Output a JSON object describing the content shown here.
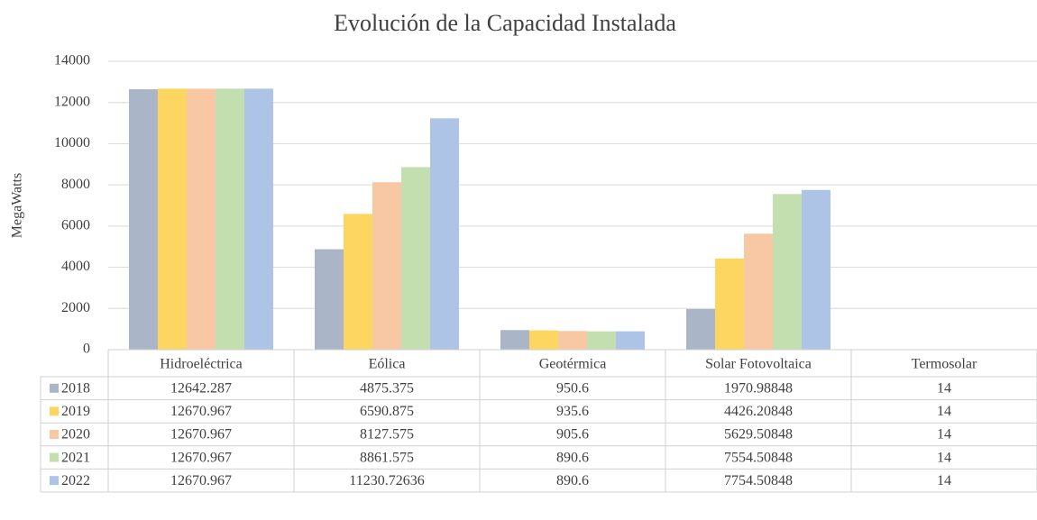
{
  "chart_data": {
    "type": "bar",
    "title": "Evolución de la Capacidad Instalada",
    "ylabel": "MegaWatts",
    "categories": [
      "Hidroeléctrica",
      "Eólica",
      "Geotérmica",
      "Solar Fotovoltaica",
      "Termosolar"
    ],
    "series": [
      {
        "name": "2018",
        "color": "#aab5c8",
        "values": [
          12642.287,
          4875.375,
          950.6,
          1970.98848,
          14
        ]
      },
      {
        "name": "2019",
        "color": "#fdd662",
        "values": [
          12670.967,
          6590.875,
          935.6,
          4426.20848,
          14
        ]
      },
      {
        "name": "2020",
        "color": "#f8c8a4",
        "values": [
          12670.967,
          8127.575,
          905.6,
          5629.50848,
          14
        ]
      },
      {
        "name": "2021",
        "color": "#c3dfb0",
        "values": [
          12670.967,
          8861.575,
          890.6,
          7554.50848,
          14
        ]
      },
      {
        "name": "2022",
        "color": "#adc4e6",
        "values": [
          12670.967,
          11230.72636,
          890.6,
          7754.50848,
          14
        ]
      }
    ],
    "ylim": [
      0,
      14000
    ],
    "yticks": [
      0,
      2000,
      4000,
      6000,
      8000,
      10000,
      12000,
      14000
    ],
    "grid": true
  }
}
